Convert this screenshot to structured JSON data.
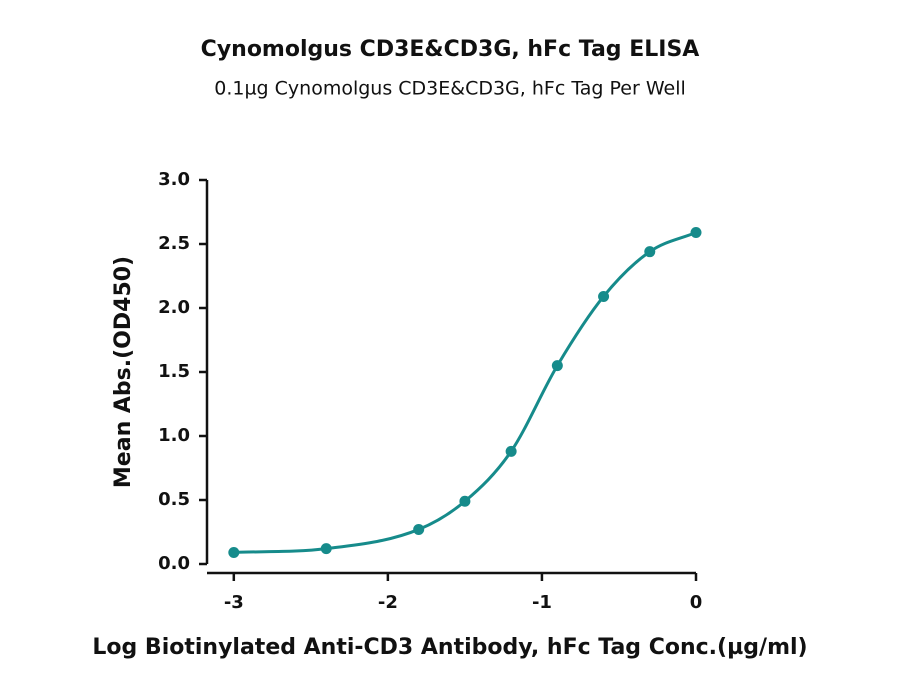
{
  "chart_data": {
    "type": "line",
    "title": "Cynomolgus CD3E&CD3G, hFc Tag ELISA",
    "subtitle": "0.1µg Cynomolgus CD3E&CD3G, hFc Tag Per Well",
    "x_label": "Log Biotinylated Anti-CD3 Antibody, hFc Tag Conc.(µg/ml)",
    "y_label": "Mean Abs.(OD450)",
    "x": [
      -3,
      -2.4,
      -1.8,
      -1.5,
      -1.2,
      -0.9,
      -0.6,
      -0.3,
      0
    ],
    "series": [
      {
        "color": "#168b8b",
        "values": [
          0.09,
          0.12,
          0.27,
          0.49,
          0.88,
          1.55,
          2.09,
          2.44,
          2.59
        ]
      }
    ],
    "xlim": [
      -3.2,
      0
    ],
    "xticks": [
      -3,
      -2,
      -1,
      0
    ],
    "ylim": [
      0,
      3
    ],
    "yticks": [
      {
        "value": 0,
        "label": "0.0"
      },
      {
        "value": 0.5,
        "label": "0.5"
      },
      {
        "value": 1,
        "label": "1.0"
      },
      {
        "value": 1.5,
        "label": "1.5"
      },
      {
        "value": 2,
        "label": "2.0"
      },
      {
        "value": 2.5,
        "label": "2.5"
      },
      {
        "value": 3,
        "label": "3.0"
      }
    ]
  }
}
